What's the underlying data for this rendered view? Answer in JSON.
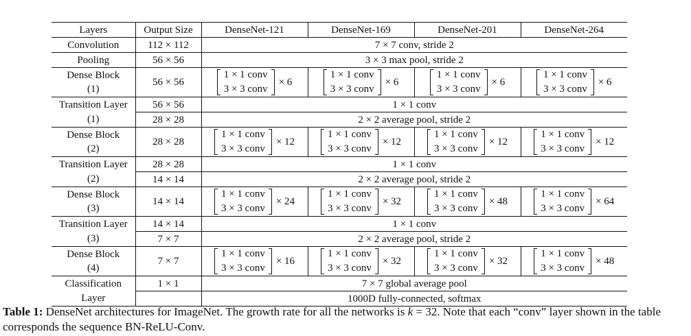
{
  "header": {
    "layers": "Layers",
    "output_size": "Output Size",
    "networks": [
      "DenseNet-121",
      "DenseNet-169",
      "DenseNet-201",
      "DenseNet-264"
    ]
  },
  "rows": {
    "convolution": {
      "name": "Convolution",
      "size": "112 × 112",
      "desc": "7 × 7 conv, stride 2"
    },
    "pooling": {
      "name": "Pooling",
      "size": "56 × 56",
      "desc": "3 × 3 max pool, stride 2"
    },
    "dense_block_1": {
      "name": "Dense Block",
      "index": "(1)",
      "size": "56 × 56",
      "mults": [
        "× 6",
        "× 6",
        "× 6",
        "× 6"
      ]
    },
    "transition_1": {
      "name": "Transition Layer",
      "index": "(1)",
      "size_conv": "56 × 56",
      "size_pool": "28 × 28",
      "conv": "1 × 1 conv",
      "pool": "2 × 2 average pool, stride 2"
    },
    "dense_block_2": {
      "name": "Dense Block",
      "index": "(2)",
      "size": "28 × 28",
      "mults": [
        "× 12",
        "× 12",
        "× 12",
        "× 12"
      ]
    },
    "transition_2": {
      "name": "Transition Layer",
      "index": "(2)",
      "size_conv": "28 × 28",
      "size_pool": "14 × 14",
      "conv": "1 × 1 conv",
      "pool": "2 × 2 average pool, stride 2"
    },
    "dense_block_3": {
      "name": "Dense Block",
      "index": "(3)",
      "size": "14 × 14",
      "mults": [
        "× 24",
        "× 32",
        "× 48",
        "× 64"
      ]
    },
    "transition_3": {
      "name": "Transition Layer",
      "index": "(3)",
      "size_conv": "14 × 14",
      "size_pool": "7 × 7",
      "conv": "1 × 1 conv",
      "pool": "2 × 2 average pool, stride 2"
    },
    "dense_block_4": {
      "name": "Dense Block",
      "index": "(4)",
      "size": "7 × 7",
      "mults": [
        "× 16",
        "× 32",
        "× 32",
        "× 48"
      ]
    },
    "classification": {
      "name": "Classification",
      "name2": "Layer",
      "size": "1 × 1",
      "desc1": "7 × 7 global average pool",
      "desc2": "1000D fully-connected, softmax"
    }
  },
  "block_ops": {
    "line1": "1 × 1 conv",
    "line2": "3 × 3 conv"
  },
  "caption": {
    "label": "Table 1:",
    "text_before": " DenseNet architectures for ImageNet. The growth rate for all the networks is ",
    "k": "k",
    "eq": " = 32",
    "text_after": ". Note that each “conv” layer shown in the table corresponds the sequence BN-ReLU-Conv."
  }
}
